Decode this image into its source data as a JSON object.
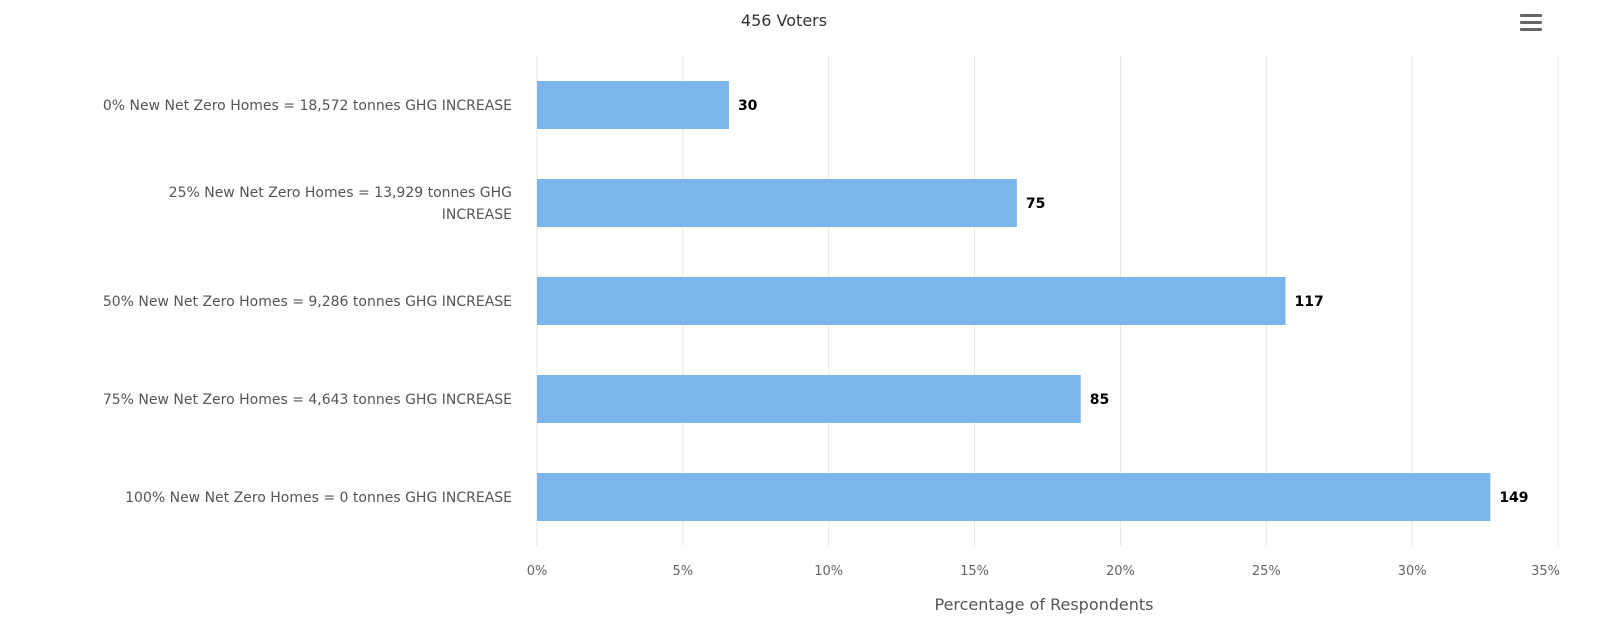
{
  "chart_data": {
    "type": "bar",
    "orientation": "horizontal",
    "title": "456 Voters",
    "xlabel": "Percentage of Respondents",
    "ylabel": "",
    "xlim": [
      0,
      35
    ],
    "x_ticks": [
      "0%",
      "5%",
      "10%",
      "15%",
      "20%",
      "25%",
      "30%",
      "35%"
    ],
    "categories": [
      [
        "0% New Net Zero Homes = 18,572 tonnes GHG INCREASE"
      ],
      [
        "25% New Net Zero Homes = 13,929 tonnes GHG",
        "INCREASE"
      ],
      [
        "50% New Net Zero Homes = 9,286 tonnes GHG INCREASE"
      ],
      [
        "75% New Net Zero Homes = 4,643 tonnes GHG INCREASE"
      ],
      [
        "100% New Net Zero Homes = 0 tonnes GHG INCREASE"
      ]
    ],
    "values": [
      6.58,
      16.45,
      25.66,
      18.64,
      32.68
    ],
    "data_labels": [
      "30",
      "75",
      "117",
      "85",
      "149"
    ],
    "grid": "vertical",
    "bar_color": "#7cb5ec"
  },
  "menu": {
    "icon": "hamburger-menu-icon"
  }
}
